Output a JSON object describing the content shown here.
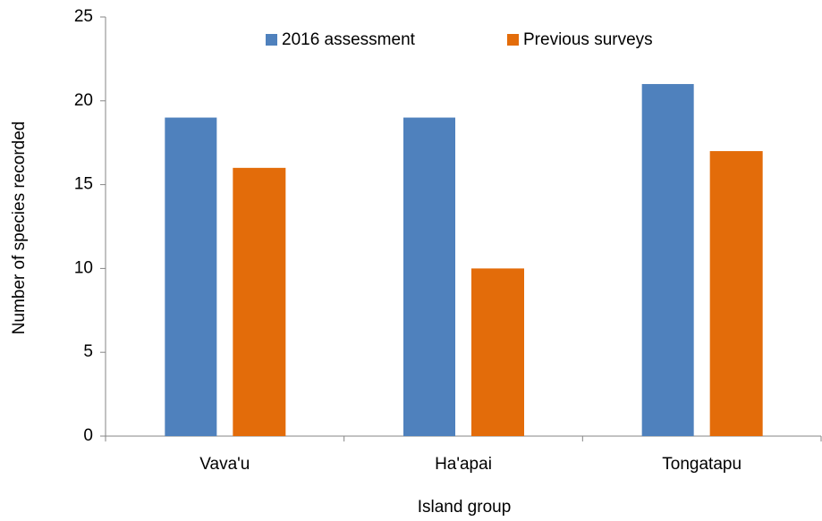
{
  "chart_data": {
    "type": "bar",
    "x_label": "Island group",
    "y_label": "Number  of species recorded",
    "categories": [
      "Vava'u",
      "Ha'apai",
      "Tongatapu"
    ],
    "series": [
      {
        "name": "2016 assessment",
        "color": "#4f81bd",
        "values": [
          19,
          19,
          21
        ]
      },
      {
        "name": "Previous surveys",
        "color": "#e36c0a",
        "values": [
          16,
          10,
          17
        ]
      }
    ],
    "ylim": [
      0,
      25
    ],
    "yticks": [
      0,
      5,
      10,
      15,
      20,
      25
    ],
    "grid": false,
    "legend": "top"
  }
}
